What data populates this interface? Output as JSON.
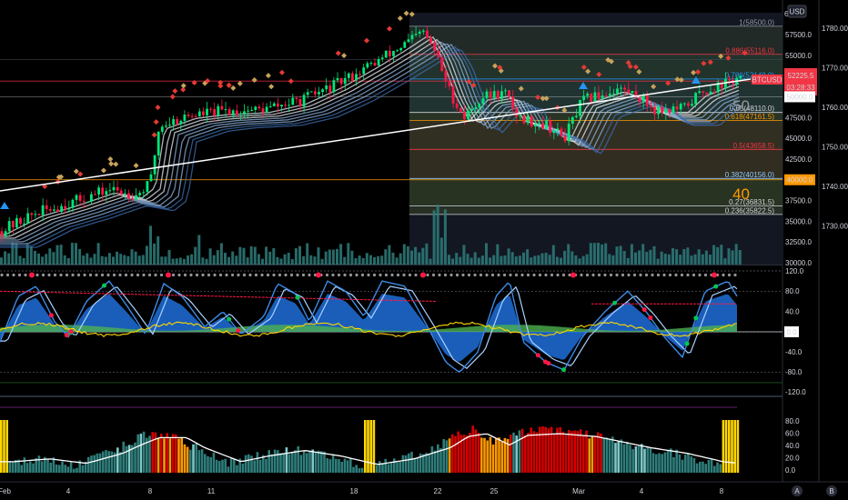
{
  "header": {
    "currency_label": "USD",
    "partial_top_label": "6"
  },
  "price_scale": {
    "left_ticks": [
      "57500.0",
      "55000.0",
      "52500.0",
      "50000.0",
      "47500.0",
      "45000.0",
      "42500.0",
      "40000.0",
      "37500.0",
      "35000.0",
      "32500.0",
      "30000.0"
    ],
    "right_ticks": [
      "1780.00",
      "1770.00",
      "1760.00",
      "1750.00",
      "1740.00",
      "1730.00"
    ]
  },
  "price_badges": {
    "symbol": "BTCUSD",
    "last_price": "52225.5",
    "countdown": "03:28:33",
    "level_50000": "50000.0",
    "level_40000": "40000.0"
  },
  "fib_levels": [
    {
      "label": "1(58500.0)",
      "price": 58500,
      "color": "#9598a1"
    },
    {
      "label": "0.886(55116.0)",
      "price": 55116,
      "color": "#f23645"
    },
    {
      "label": "0.786(52148.0)",
      "price": 52148,
      "color": "#2196f3"
    },
    {
      "label": "0.65(48110.0)",
      "price": 48110,
      "color": "#d1d4dc"
    },
    {
      "label": "0.618(47161.5)",
      "price": 47161.5,
      "color": "#ff9800"
    },
    {
      "label": "0.5(43658.5)",
      "price": 43658.5,
      "color": "#f23645"
    },
    {
      "label": "0.382(40156.0)",
      "price": 40156,
      "color": "#8fc9ff"
    },
    {
      "label": "0.27(36831.5)",
      "price": 36831.5,
      "color": "#d1d4dc"
    },
    {
      "label": "0.236(35822.5)",
      "price": 35822.5,
      "color": "#d1d4dc"
    }
  ],
  "big_labels": {
    "fifty": "50",
    "forty": "40"
  },
  "osc_scale": [
    "120.0",
    "80.0",
    "40.0",
    "0.0",
    "-40.0",
    "-80.0",
    "-120.0"
  ],
  "osc_zero_badge": "0.0",
  "bottom_scale": [
    "80.0",
    "60.0",
    "40.0",
    "20.0",
    "0.0"
  ],
  "x_axis": [
    "Feb",
    "4",
    "8",
    "11",
    "18",
    "22",
    "25",
    "Mar",
    "4",
    "8"
  ],
  "footer_buttons": {
    "a": "A",
    "b": "B"
  },
  "colors": {
    "up": "#00e676",
    "down": "#ff1744",
    "ribbon": "#5b9bd5",
    "osc_blue": "#1e6fd9",
    "osc_green": "#4caf50",
    "teal": "#2e7d7a",
    "orange": "#ff9800",
    "red": "#d50000"
  },
  "chart_data": [
    {
      "type": "line",
      "title": "",
      "ylabel": "",
      "x": [
        "Feb",
        "4",
        "8",
        "11",
        "18",
        "22",
        "25",
        "Mar",
        "4",
        "8"
      ],
      "series": [
        {
          "name": "",
          "values": [
            33500,
            36500,
            38500,
            47000,
            50000,
            57500,
            46500,
            45500,
            49500,
            51500
          ]
        }
      ],
      "ylim": [
        30000,
        60000
      ],
      "annotations": [
        "50",
        "40"
      ]
    },
    {
      "type": "area",
      "title": "",
      "series": [
        {
          "name": "",
          "values": [
            -10,
            80,
            80,
            80,
            80,
            80,
            -60,
            -60,
            60,
            80
          ]
        }
      ],
      "ylim": [
        -120,
        120
      ]
    },
    {
      "type": "bar",
      "title": "",
      "series": [
        {
          "name": "",
          "values": [
            15,
            20,
            30,
            55,
            40,
            20,
            90,
            70,
            40,
            10
          ]
        }
      ],
      "ylim": [
        0,
        95
      ]
    }
  ]
}
